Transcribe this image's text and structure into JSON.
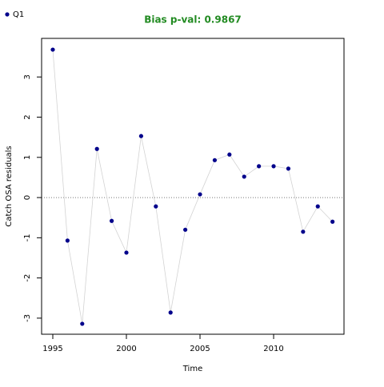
{
  "chart_data": {
    "type": "line",
    "title": "Bias p-val: 0.9867",
    "title_color": "#228b22",
    "x_label": "Time",
    "y_label": "Catch OSA residuals",
    "x": [
      1995,
      1996,
      1997,
      1998,
      1999,
      2000,
      2001,
      2002,
      2003,
      2004,
      2005,
      2006,
      2007,
      2008,
      2009,
      2010,
      2011,
      2012,
      2013,
      2014
    ],
    "series": [
      {
        "name": "Q1",
        "color": "#00008b",
        "line_color": "#d3d3d3",
        "values": [
          3.68,
          -1.07,
          -3.14,
          1.21,
          -0.58,
          -1.37,
          1.53,
          -0.22,
          -2.86,
          -0.8,
          0.08,
          0.93,
          1.07,
          0.52,
          0.78,
          0.78,
          0.72,
          -0.85,
          -0.22,
          -0.6
        ]
      }
    ],
    "xlim": [
      1994.24,
      2014.78
    ],
    "ylim": [
      -3.4,
      3.96
    ],
    "xticks": [
      1995,
      2000,
      2005,
      2010
    ],
    "yticks": [
      -3,
      -2,
      -1,
      0,
      1,
      2,
      3
    ],
    "hline": 0,
    "legend": "top-left",
    "grid": false
  }
}
